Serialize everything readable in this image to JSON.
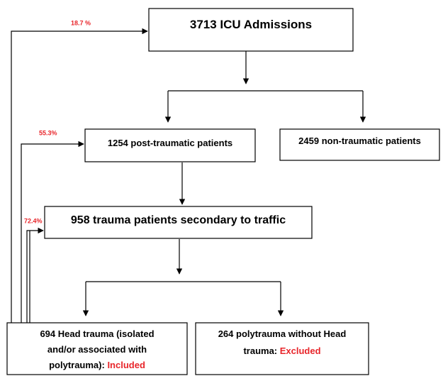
{
  "nodes": [
    {
      "lines": [
        "3713 ICU Admissions"
      ]
    },
    {
      "lines": [
        "1254  post-traumatic patients"
      ]
    },
    {
      "lines": [
        "2459 non-traumatic patients"
      ]
    },
    {
      "lines": [
        "958 trauma patients secondary to traffic"
      ]
    },
    {
      "lines": [
        "694 Head trauma (isolated",
        "and/or associated with",
        "polytrauma): "
      ],
      "status": "Included"
    },
    {
      "lines": [
        "264 polytrauma without Head",
        "trauma: "
      ],
      "status": "Excluded"
    }
  ],
  "edges": [
    {
      "label": "18.7 %"
    },
    {
      "label": "55.3%"
    },
    {
      "label": "72.4%"
    }
  ]
}
